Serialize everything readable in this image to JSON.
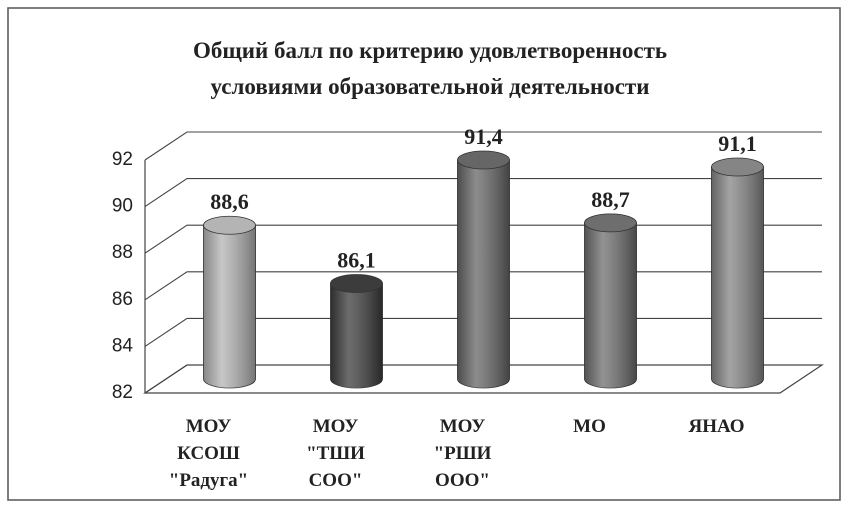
{
  "chart_data": {
    "type": "bar",
    "title": [
      "Общий балл по критерию  удовлетворенность",
      "условиями  образовательной деятельности"
    ],
    "categories": [
      [
        "МОУ",
        "КСОШ",
        "\"Радуга\""
      ],
      [
        "МОУ",
        "\"ТШИ",
        "СОО\""
      ],
      [
        "МОУ",
        "\"РШИ",
        "ООО\""
      ],
      [
        "МО"
      ],
      [
        "ЯНАО"
      ]
    ],
    "values": [
      88.6,
      86.1,
      91.4,
      88.7,
      91.1
    ],
    "value_labels": [
      "88,6",
      "86,1",
      "91,4",
      "88,7",
      "91,1"
    ],
    "colors": [
      "#b4b4b4",
      "#3c3c3c",
      "#666666",
      "#6e6e6e",
      "#858585"
    ],
    "ylim": [
      82,
      92
    ],
    "yticks": [
      82,
      84,
      86,
      88,
      90,
      92
    ],
    "grid": true
  }
}
